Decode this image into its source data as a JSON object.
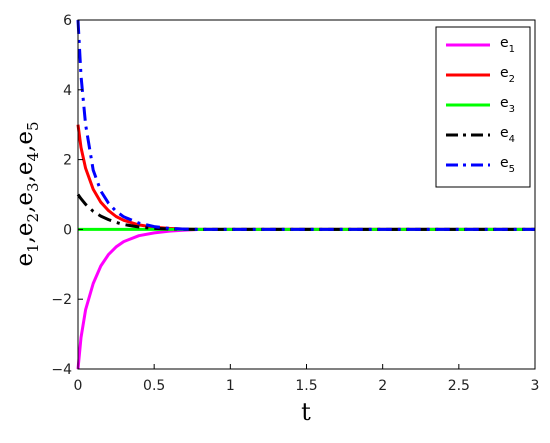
{
  "chart_data": {
    "type": "line",
    "title": "",
    "xlabel": "t",
    "ylabel": "e1,e2,e3,e4,e5",
    "xlim": [
      0,
      3
    ],
    "ylim": [
      -4,
      6
    ],
    "x_ticks": [
      0,
      0.5,
      1,
      1.5,
      2,
      2.5,
      3
    ],
    "x_tick_labels": [
      "0",
      "0.5",
      "1",
      "1.5",
      "2",
      "2.5",
      "3"
    ],
    "y_ticks": [
      -4,
      -2,
      0,
      2,
      4,
      6
    ],
    "y_tick_labels": [
      "−4",
      "−2",
      "0",
      "2",
      "4",
      "6"
    ],
    "grid": false,
    "legend_position": "top-right",
    "x": [
      0,
      0.02,
      0.05,
      0.1,
      0.15,
      0.2,
      0.25,
      0.3,
      0.4,
      0.5,
      0.6,
      0.7,
      0.8,
      0.9,
      1.0,
      1.5,
      2.0,
      2.5,
      3.0
    ],
    "series": [
      {
        "name": "e1",
        "color": "#ff00ff",
        "style": "solid",
        "values": [
          -4.0,
          -3.1,
          -2.3,
          -1.55,
          -1.05,
          -0.72,
          -0.5,
          -0.35,
          -0.18,
          -0.1,
          -0.05,
          -0.02,
          0,
          0,
          0,
          0,
          0,
          0,
          0
        ]
      },
      {
        "name": "e2",
        "color": "#ff0000",
        "style": "solid",
        "values": [
          3.0,
          2.35,
          1.75,
          1.15,
          0.78,
          0.54,
          0.37,
          0.26,
          0.13,
          0.06,
          0.03,
          0.01,
          0,
          0,
          0,
          0,
          0,
          0,
          0
        ]
      },
      {
        "name": "e3",
        "color": "#00ff00",
        "style": "solid",
        "values": [
          0,
          0,
          0,
          0,
          0,
          0,
          0,
          0,
          0,
          0,
          0,
          0,
          0,
          0,
          0,
          0,
          0,
          0,
          0
        ]
      },
      {
        "name": "e4",
        "color": "#000000",
        "style": "dashdot",
        "values": [
          1.0,
          0.88,
          0.72,
          0.52,
          0.38,
          0.28,
          0.2,
          0.14,
          0.07,
          0.03,
          0.015,
          0.005,
          0,
          0,
          0,
          0,
          0,
          0,
          0
        ]
      },
      {
        "name": "e5",
        "color": "#0000ff",
        "style": "dashdot",
        "values": [
          6.0,
          4.4,
          3.0,
          1.7,
          1.1,
          0.75,
          0.52,
          0.36,
          0.18,
          0.08,
          0.03,
          0.01,
          0,
          0,
          0,
          0,
          0,
          0,
          0
        ]
      }
    ]
  }
}
